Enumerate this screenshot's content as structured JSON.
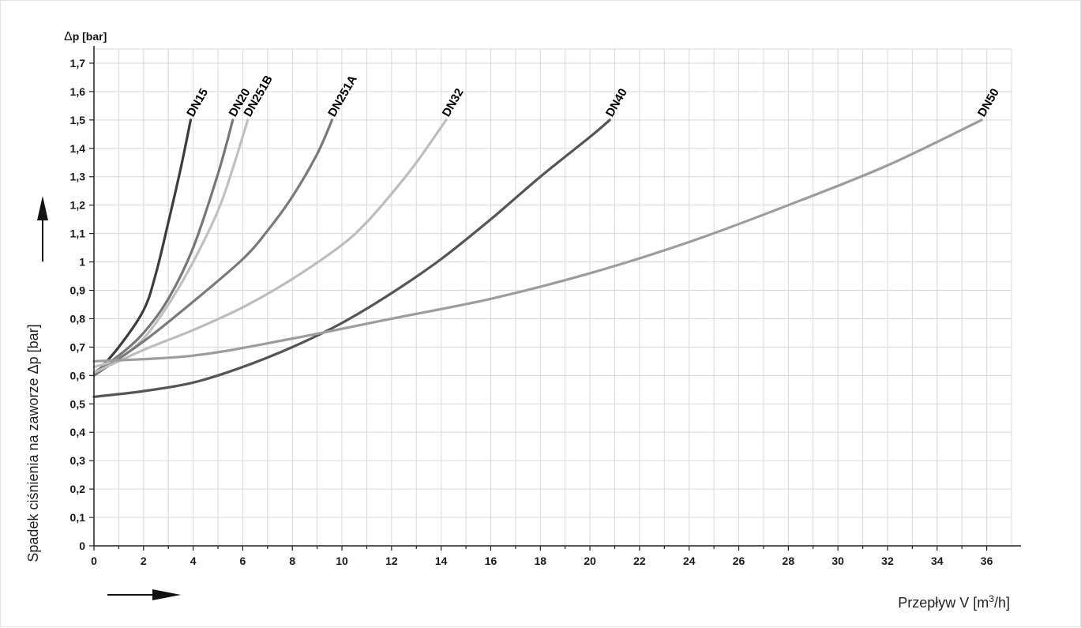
{
  "chart_data": {
    "type": "line",
    "title": "",
    "xlabel": "Przepływ V [m3/h]",
    "xlabel_parts": {
      "main": "Przepływ V [m",
      "sup": "3",
      "end": "/h]"
    },
    "ylabel": "Spadek ciśnienia na zaworze Δp [bar]",
    "unit_label": {
      "delta": "Δ",
      "text": "p [bar]"
    },
    "xlim": [
      0,
      37
    ],
    "ylim": [
      0,
      1.75
    ],
    "x_ticks": [
      "0",
      "2",
      "4",
      "6",
      "8",
      "10",
      "12",
      "14",
      "16",
      "18",
      "20",
      "22",
      "24",
      "26",
      "28",
      "30",
      "32",
      "34",
      "36"
    ],
    "y_ticks": [
      "0",
      "0,1",
      "0,2",
      "0,3",
      "0,4",
      "0,5",
      "0,6",
      "0,7",
      "0,8",
      "0,9",
      "1",
      "1,1",
      "1,2",
      "1,3",
      "1,4",
      "1,5",
      "1,6",
      "1,7"
    ],
    "grid": true,
    "legend": "none",
    "series": [
      {
        "name": "DN15",
        "color": "#3d3d3d",
        "x": [
          0,
          1,
          2,
          2.5,
          3,
          3.5,
          3.9
        ],
        "y": [
          0.6,
          0.7,
          0.83,
          0.96,
          1.14,
          1.33,
          1.5
        ]
      },
      {
        "name": "DN20",
        "color": "#777777",
        "x": [
          0,
          1,
          2,
          3,
          4,
          5,
          5.6
        ],
        "y": [
          0.61,
          0.67,
          0.75,
          0.87,
          1.05,
          1.31,
          1.5
        ]
      },
      {
        "name": "DN251B",
        "color": "#c0c0c0",
        "x": [
          0,
          1,
          2,
          3,
          4,
          5,
          5.6,
          6.2
        ],
        "y": [
          0.63,
          0.66,
          0.73,
          0.85,
          1.0,
          1.18,
          1.33,
          1.5
        ]
      },
      {
        "name": "DN251A",
        "color": "#7a7a7a",
        "x": [
          0,
          2,
          4,
          6,
          7,
          8,
          9,
          9.6
        ],
        "y": [
          0.6,
          0.72,
          0.86,
          1.01,
          1.11,
          1.23,
          1.38,
          1.5
        ]
      },
      {
        "name": "DN32",
        "color": "#bdbdbd",
        "x": [
          0,
          2,
          4,
          6,
          8,
          10,
          11,
          12,
          13,
          14.2
        ],
        "y": [
          0.61,
          0.69,
          0.76,
          0.84,
          0.94,
          1.06,
          1.14,
          1.24,
          1.35,
          1.5
        ]
      },
      {
        "name": "DN40",
        "color": "#555555",
        "x": [
          0,
          2,
          4,
          6,
          8,
          10,
          12,
          14,
          16,
          18,
          20,
          20.8
        ],
        "y": [
          0.525,
          0.545,
          0.575,
          0.63,
          0.7,
          0.785,
          0.89,
          1.01,
          1.15,
          1.3,
          1.44,
          1.5
        ]
      },
      {
        "name": "DN50",
        "color": "#9d9d9d",
        "x": [
          0,
          4,
          8,
          12,
          16,
          20,
          24,
          28,
          32,
          35.8
        ],
        "y": [
          0.65,
          0.67,
          0.73,
          0.8,
          0.87,
          0.96,
          1.07,
          1.2,
          1.34,
          1.5
        ]
      }
    ]
  }
}
